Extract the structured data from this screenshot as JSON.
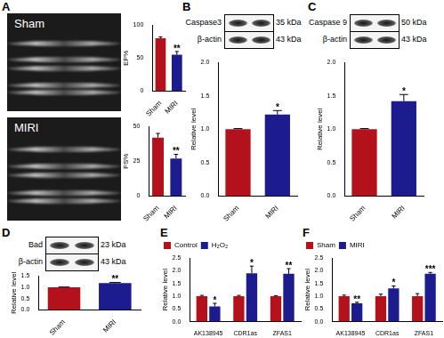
{
  "panels": {
    "A": {
      "images": [
        "Sham",
        "MIRI"
      ]
    },
    "B": {
      "blot": [
        {
          "label": "Caspase3",
          "size": "35 kDa"
        },
        {
          "label": "β-actin",
          "size": "43 kDa"
        }
      ]
    },
    "C": {
      "blot": [
        {
          "label": "Caspase 9",
          "size": "50 kDa"
        },
        {
          "label": "β-actin",
          "size": "43 kDa"
        }
      ]
    },
    "D": {
      "blot": [
        {
          "label": "Bad",
          "size": "23 kDa"
        },
        {
          "label": "β-actin",
          "size": "43 kDa"
        }
      ]
    },
    "E": {},
    "F": {}
  },
  "chart_data": [
    {
      "type": "bar",
      "categories": [
        "Sham",
        "MIRI"
      ],
      "values": [
        80,
        55
      ],
      "errors": [
        2,
        5
      ],
      "colors": [
        "#b3121c",
        "#1c1c8f"
      ],
      "ylabel": "EF%",
      "ylim": [
        0,
        100
      ],
      "yticks": [
        0,
        50,
        100
      ],
      "grid": false,
      "annotations": [
        {
          "category": "MIRI",
          "text": "**"
        }
      ]
    },
    {
      "type": "bar",
      "categories": [
        "Sham",
        "MIRI"
      ],
      "values": [
        42,
        27
      ],
      "errors": [
        3,
        3
      ],
      "colors": [
        "#b3121c",
        "#1c1c8f"
      ],
      "ylabel": "FS%",
      "ylim": [
        0,
        50
      ],
      "yticks": [
        0,
        25,
        50
      ],
      "grid": false,
      "annotations": [
        {
          "category": "MIRI",
          "text": "**"
        }
      ]
    },
    {
      "type": "bar",
      "categories": [
        "Sham",
        "MIRI"
      ],
      "values": [
        1.0,
        1.22
      ],
      "errors": [
        0.01,
        0.06
      ],
      "colors": [
        "#b3121c",
        "#1c1c8f"
      ],
      "ylabel": "Relative level",
      "ylim": [
        0,
        2
      ],
      "yticks": [
        {
          "value": 0,
          "label": "0.0"
        },
        0.5,
        {
          "value": 1,
          "label": "1.0"
        },
        1.5,
        {
          "value": 2,
          "label": "2.0"
        }
      ],
      "grid": false,
      "annotations": [
        {
          "category": "MIRI",
          "text": "*"
        }
      ]
    },
    {
      "type": "bar",
      "categories": [
        "Sham",
        "MIRI"
      ],
      "values": [
        1.0,
        1.42
      ],
      "errors": [
        0.01,
        0.1
      ],
      "colors": [
        "#b3121c",
        "#1c1c8f"
      ],
      "ylabel": "Relative level",
      "ylim": [
        0,
        2
      ],
      "yticks": [
        {
          "value": 0,
          "label": "0.0"
        },
        0.5,
        {
          "value": 1,
          "label": "1.0"
        },
        1.5,
        {
          "value": 2,
          "label": "2.0"
        }
      ],
      "grid": false,
      "annotations": [
        {
          "category": "MIRI",
          "text": "*"
        }
      ]
    },
    {
      "type": "bar",
      "categories": [
        "Sham",
        "MIRI"
      ],
      "values": [
        1.0,
        1.18
      ],
      "errors": [
        0.01,
        0.03
      ],
      "colors": [
        "#b3121c",
        "#1c1c8f"
      ],
      "ylabel": "Relative level",
      "ylim": [
        0,
        1.5
      ],
      "yticks": [
        {
          "value": 0,
          "label": "0.0"
        },
        0.5,
        {
          "value": 1,
          "label": "1.0"
        },
        1.5
      ],
      "grid": false,
      "annotations": [
        {
          "category": "MIRI",
          "text": "**"
        }
      ]
    },
    {
      "type": "bar",
      "categories": [
        "AK138945",
        "CDR1as",
        "ZFAS1"
      ],
      "series": [
        {
          "name": "Control",
          "color": "#b3121c",
          "values": [
            1.0,
            1.0,
            1.0
          ],
          "errors": [
            0.03,
            0.03,
            0.02
          ]
        },
        {
          "name": "H₂O₂",
          "color": "#1c1c8f",
          "values": [
            0.6,
            1.9,
            1.88
          ],
          "errors": [
            0.12,
            0.28,
            0.2
          ]
        }
      ],
      "ylabel": "Relative level",
      "ylim": [
        0,
        2.5
      ],
      "yticks": [
        {
          "value": 0,
          "label": "0.0"
        },
        0.5,
        {
          "value": 1,
          "label": "1.0"
        },
        1.5,
        {
          "value": 2,
          "label": "2.0"
        },
        2.5
      ],
      "grid": false,
      "legend": "top-left",
      "annotations": [
        {
          "category": "AK138945",
          "series": "H₂O₂",
          "text": "*"
        },
        {
          "category": "CDR1as",
          "series": "H₂O₂",
          "text": "*"
        },
        {
          "category": "ZFAS1",
          "series": "H₂O₂",
          "text": "**"
        }
      ]
    },
    {
      "type": "bar",
      "categories": [
        "AK138945",
        "CDR1as",
        "ZFAS1"
      ],
      "series": [
        {
          "name": "Sham",
          "color": "#b3121c",
          "values": [
            1.0,
            1.0,
            1.0
          ],
          "errors": [
            0.04,
            0.08,
            0.1
          ]
        },
        {
          "name": "MIRI",
          "color": "#1c1c8f",
          "values": [
            0.72,
            1.3,
            1.88
          ],
          "errors": [
            0.04,
            0.1,
            0.05
          ]
        }
      ],
      "ylabel": "Relative level",
      "ylim": [
        0,
        2.5
      ],
      "yticks": [
        {
          "value": 0,
          "label": "0.0"
        },
        0.5,
        {
          "value": 1,
          "label": "1.0"
        },
        1.5,
        {
          "value": 2,
          "label": "2.0"
        },
        2.5
      ],
      "grid": false,
      "legend": "top-left",
      "annotations": [
        {
          "category": "AK138945",
          "series": "MIRI",
          "text": "**"
        },
        {
          "category": "CDR1as",
          "series": "MIRI",
          "text": "*"
        },
        {
          "category": "ZFAS1",
          "series": "MIRI",
          "text": "***"
        }
      ]
    }
  ]
}
